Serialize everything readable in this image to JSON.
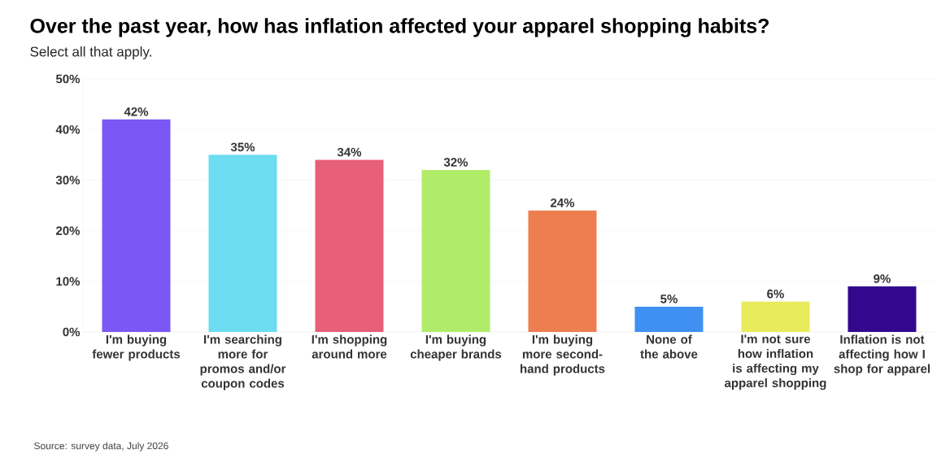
{
  "chart_data": {
    "type": "bar",
    "title": "Over the past year, how has inflation affected your apparel shopping habits?",
    "subtitle": "Select all that apply.",
    "categories": [
      "I'm buying fewer products",
      "I'm searching more for promos and/or coupon codes",
      "I'm shopping around more",
      "I'm buying cheaper brands",
      "I'm buying more second-hand products",
      "None of the above",
      "I'm not sure how inflation is affecting my apparel shopping",
      "Inflation is not affecting how I shop for apparel"
    ],
    "values": [
      42,
      35,
      34,
      32,
      24,
      5,
      6,
      9
    ],
    "value_labels": [
      "42%",
      "35%",
      "34%",
      "32%",
      "24%",
      "5%",
      "6%",
      "9%"
    ],
    "colors": [
      "#7b57f5",
      "#6cdcf0",
      "#e85f79",
      "#b1ec69",
      "#ee7e50",
      "#3f90f2",
      "#e8ec5c",
      "#33088f"
    ],
    "ylim": [
      0,
      50
    ],
    "yticks": [
      {
        "value": 0,
        "label": "0%"
      },
      {
        "value": 10,
        "label": "10%"
      },
      {
        "value": 20,
        "label": "20%"
      },
      {
        "value": 30,
        "label": "30%"
      },
      {
        "value": 40,
        "label": "40%"
      },
      {
        "value": 50,
        "label": "50%"
      }
    ],
    "grid": "y",
    "annotations": [
      "Source: survey data, July 2026"
    ]
  }
}
